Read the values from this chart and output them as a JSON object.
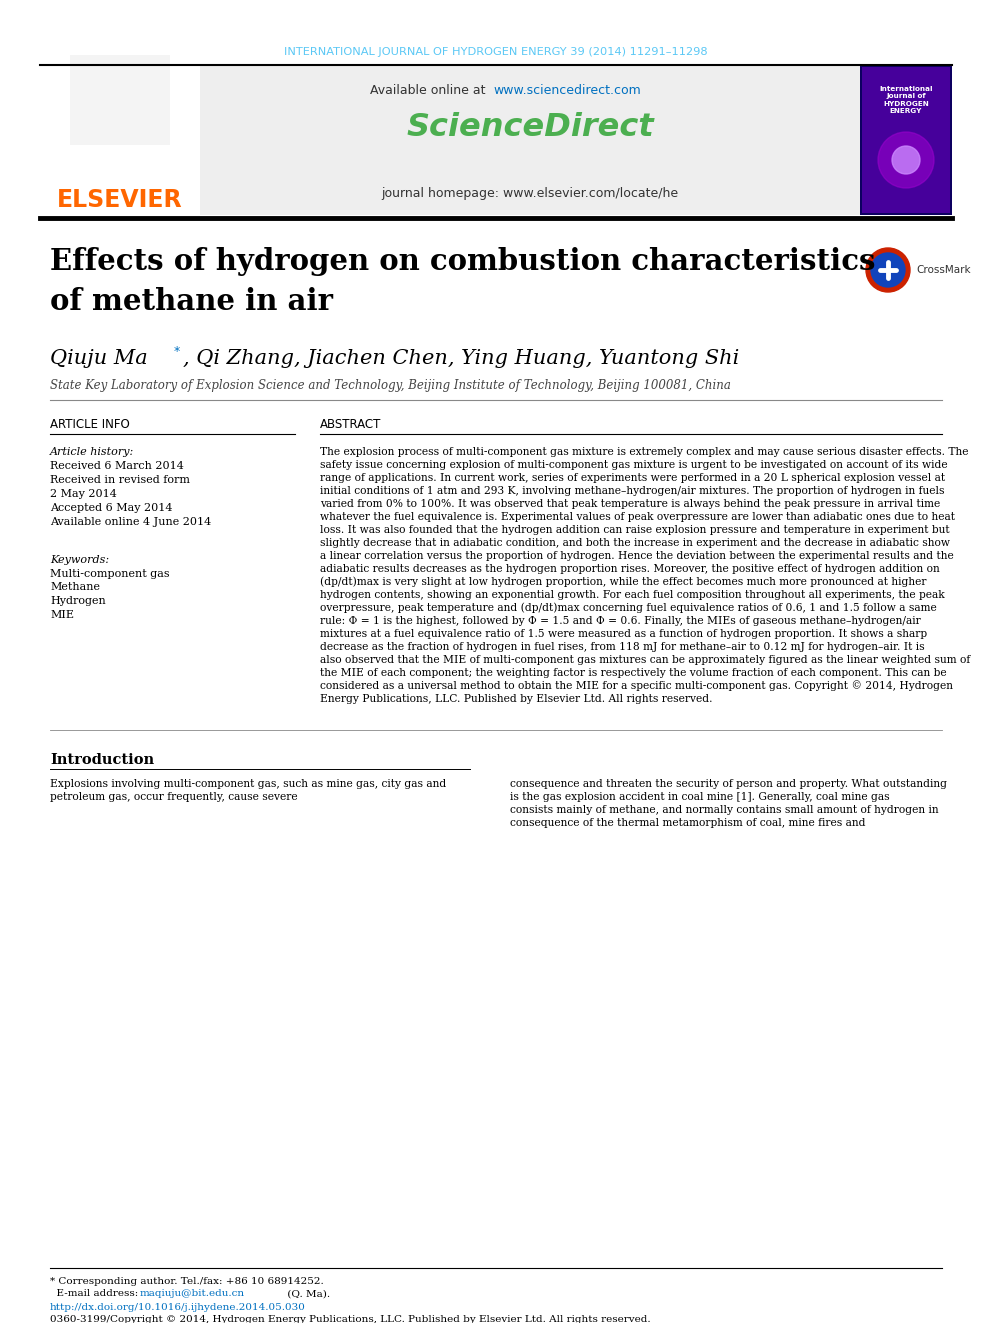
{
  "journal_header": "INTERNATIONAL JOURNAL OF HYDROGEN ENERGY 39 (2014) 11291–11298",
  "journal_header_color": "#5bc8f5",
  "available_online_prefix": "Available online at ",
  "sciencedirect_url": "www.sciencedirect.com",
  "sciencedirect_url_color": "#0070c0",
  "sciencedirect_brand": "ScienceDirect",
  "sciencedirect_color": "#4caf50",
  "journal_homepage": "journal homepage: www.elsevier.com/locate/he",
  "journal_homepage_color": "#333333",
  "elsevier_text": "ELSEVIER",
  "elsevier_color": "#ff6600",
  "header_bg_color": "#eeeeee",
  "title_bar_color": "#1a1a1a",
  "paper_title_line1": "Effects of hydrogen on combustion characteristics",
  "paper_title_line2": "of methane in air",
  "title_color": "#000000",
  "author_name_part1": "Qiuju Ma",
  "author_rest": ", Qi Zhang, Jiachen Chen, Ying Huang, Yuantong Shi",
  "affiliation": "State Key Laboratory of Explosion Science and Technology, Beijing Institute of Technology, Beijing 100081, China",
  "article_info_header": "ARTICLE INFO",
  "abstract_header": "ABSTRACT",
  "article_history_label": "Article history:",
  "received1": "Received 6 March 2014",
  "received_revised": "Received in revised form",
  "revised_date": "2 May 2014",
  "accepted": "Accepted 6 May 2014",
  "available_online2": "Available online 4 June 2014",
  "keywords_label": "Keywords:",
  "keywords": [
    "Multi-component gas",
    "Methane",
    "Hydrogen",
    "MIE"
  ],
  "abstract_text": "The explosion process of multi-component gas mixture is extremely complex and may cause serious disaster effects. The safety issue concerning explosion of multi-component gas mixture is urgent to be investigated on account of its wide range of applications. In current work, series of experiments were performed in a 20 L spherical explosion vessel at initial conditions of 1 atm and 293 K, involving methane–hydrogen/air mixtures. The proportion of hydrogen in fuels varied from 0% to 100%. It was observed that peak temperature is always behind the peak pressure in arrival time whatever the fuel equivalence is. Experimental values of peak overpressure are lower than adiabatic ones due to heat loss. It was also founded that the hydrogen addition can raise explosion pressure and temperature in experiment but slightly decrease that in adiabatic condition, and both the increase in experiment and the decrease in adiabatic show a linear correlation versus the proportion of hydrogen. Hence the deviation between the experimental results and the adiabatic results decreases as the hydrogen proportion rises. Moreover, the positive effect of hydrogen addition on (dp/dt)max is very slight at low hydrogen proportion, while the effect becomes much more pronounced at higher hydrogen contents, showing an exponential growth. For each fuel composition throughout all experiments, the peak overpressure, peak temperature and (dp/dt)max concerning fuel equivalence ratios of 0.6, 1 and 1.5 follow a same rule: Φ = 1 is the highest, followed by Φ = 1.5 and Φ = 0.6. Finally, the MIEs of gaseous methane–hydrogen/air mixtures at a fuel equivalence ratio of 1.5 were measured as a function of hydrogen proportion. It shows a sharp decrease as the fraction of hydrogen in fuel rises, from 118 mJ for methane–air to 0.12 mJ for hydrogen–air. It is also observed that the MIE of multi-component gas mixtures can be approximately figured as the linear weighted sum of the MIE of each component; the weighting factor is respectively the volume fraction of each component. This can be considered as a universal method to obtain the MIE for a specific multi-component gas. Copyright © 2014, Hydrogen Energy Publications, LLC. Published by Elsevier Ltd. All rights reserved.",
  "intro_header": "Introduction",
  "intro_text_left": "Explosions involving multi-component gas, such as mine gas, city gas and petroleum gas, occur frequently, cause severe",
  "intro_text_right": "consequence and threaten the security of person and property. What outstanding is the gas explosion accident in coal mine [1]. Generally, coal mine gas consists mainly of methane, and normally contains small amount of hydrogen in consequence of the thermal metamorphism of coal, mine fires and",
  "footnote_corresponding": "* Corresponding author. Tel./fax: +86 10 68914252.",
  "footnote_email_label": "  E-mail address: ",
  "footnote_email": "maqiuju@bit.edu.cn",
  "footnote_email_suffix": " (Q. Ma).",
  "footnote_doi": "http://dx.doi.org/10.1016/j.ijhydene.2014.05.030",
  "footnote_copyright": "0360-3199/Copyright © 2014, Hydrogen Energy Publications, LLC. Published by Elsevier Ltd. All rights reserved.",
  "separator_color": "#888888",
  "cover_bg_color": "#1a0080",
  "cover_text_color": "#ffffff"
}
